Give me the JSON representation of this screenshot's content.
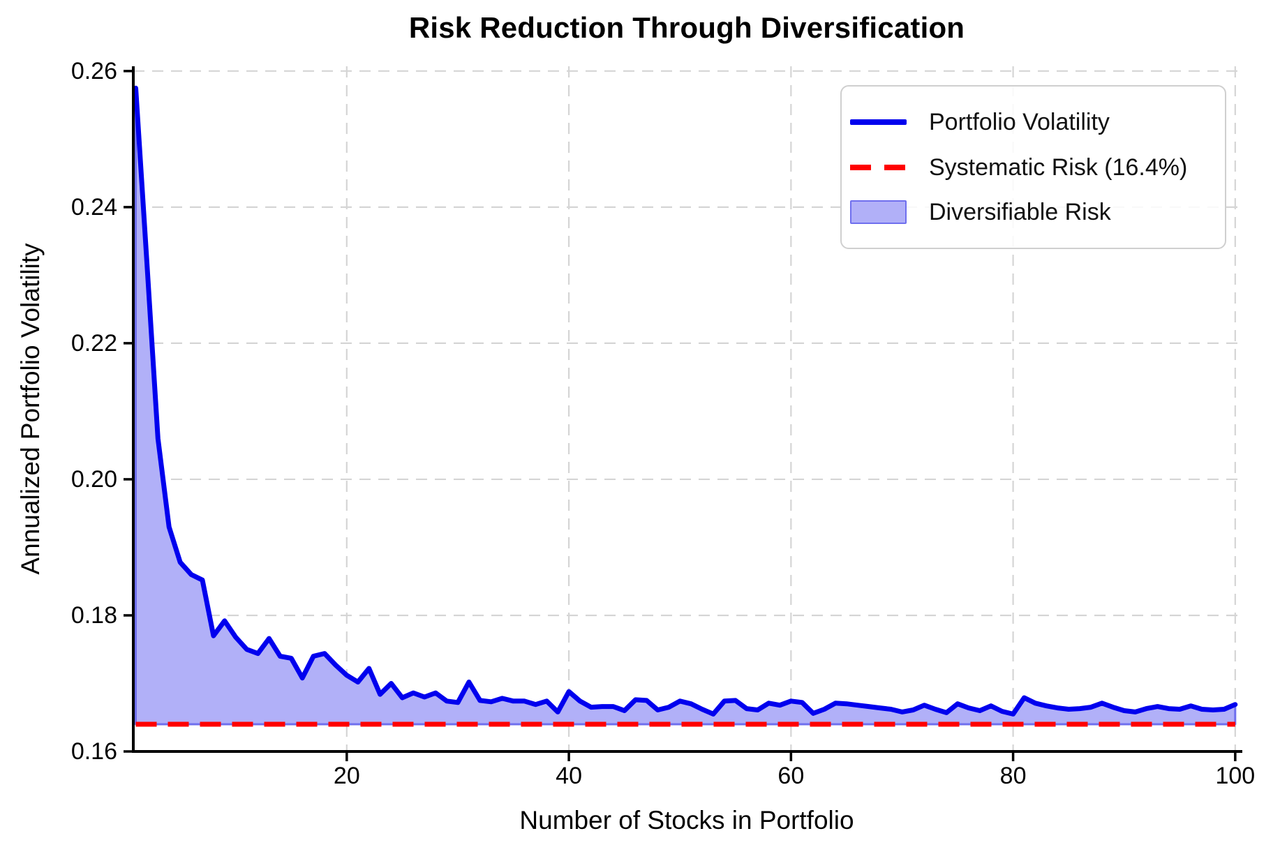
{
  "title": "Risk Reduction Through Diversification",
  "colors": {
    "line": "#0000ee",
    "systematic": "#ff0000",
    "area_fill": "#b1b0f8",
    "area_edge": "#6f6fee",
    "grid": "#d5d5d5",
    "spine": "#000000",
    "text": "#000000"
  },
  "legend": {
    "items": [
      {
        "label": "Portfolio Volatility",
        "handle": "solid-blue-line"
      },
      {
        "label": "Systematic Risk (16.4%)",
        "handle": "dashed-red-line"
      },
      {
        "label": "Diversifiable Risk",
        "handle": "lavender-patch"
      }
    ]
  },
  "chart_data": {
    "type": "area",
    "title": "Risk Reduction Through Diversification",
    "xlabel": "Number of Stocks in Portfolio",
    "ylabel": "Annualized Portfolio Volatility",
    "xlim": [
      0.78,
      100.45
    ],
    "ylim": [
      0.16,
      0.2607
    ],
    "x_ticks": [
      20,
      40,
      60,
      80,
      100
    ],
    "x_tick_labels": [
      "20",
      "40",
      "60",
      "80",
      "100"
    ],
    "y_ticks": [
      0.16,
      0.18,
      0.2,
      0.22,
      0.24,
      0.26
    ],
    "y_tick_labels": [
      "0.16",
      "0.18",
      "0.20",
      "0.22",
      "0.24",
      "0.26"
    ],
    "grid": true,
    "grid_style": "dashed",
    "legend_position": "upper right",
    "systematic_risk": 0.164,
    "series": [
      {
        "name": "Portfolio Volatility",
        "type": "line",
        "x": [
          1,
          2,
          3,
          4,
          5,
          6,
          7,
          8,
          9,
          10,
          11,
          12,
          13,
          14,
          15,
          16,
          17,
          18,
          19,
          20,
          21,
          22,
          23,
          24,
          25,
          26,
          27,
          28,
          29,
          30,
          31,
          32,
          33,
          34,
          35,
          36,
          37,
          38,
          39,
          40,
          41,
          42,
          43,
          44,
          45,
          46,
          47,
          48,
          49,
          50,
          51,
          52,
          53,
          54,
          55,
          56,
          57,
          58,
          59,
          60,
          61,
          62,
          63,
          64,
          65,
          66,
          67,
          68,
          69,
          70,
          71,
          72,
          73,
          74,
          75,
          76,
          77,
          78,
          79,
          80,
          81,
          82,
          83,
          84,
          85,
          86,
          87,
          88,
          89,
          90,
          91,
          92,
          93,
          94,
          95,
          96,
          97,
          98,
          99,
          100
        ],
        "values": [
          0.2575,
          0.232,
          0.206,
          0.193,
          0.1878,
          0.186,
          0.1852,
          0.177,
          0.1792,
          0.1768,
          0.175,
          0.1744,
          0.1766,
          0.174,
          0.1737,
          0.1708,
          0.174,
          0.1744,
          0.1727,
          0.1712,
          0.1702,
          0.1722,
          0.1684,
          0.17,
          0.1679,
          0.1686,
          0.168,
          0.1686,
          0.1674,
          0.1672,
          0.1702,
          0.1675,
          0.1673,
          0.1678,
          0.1674,
          0.1674,
          0.1669,
          0.1674,
          0.1658,
          0.1688,
          0.1674,
          0.1665,
          0.1666,
          0.1666,
          0.166,
          0.1676,
          0.1675,
          0.1661,
          0.1665,
          0.1674,
          0.167,
          0.1662,
          0.1655,
          0.1674,
          0.1675,
          0.1663,
          0.1661,
          0.1671,
          0.1668,
          0.1674,
          0.1672,
          0.1656,
          0.1662,
          0.1671,
          0.167,
          0.1668,
          0.1666,
          0.1664,
          0.1662,
          0.1658,
          0.1661,
          0.1668,
          0.1662,
          0.1657,
          0.167,
          0.1664,
          0.166,
          0.1667,
          0.1659,
          0.1655,
          0.1679,
          0.1671,
          0.1667,
          0.1664,
          0.1662,
          0.1663,
          0.1665,
          0.1671,
          0.1665,
          0.166,
          0.1658,
          0.1663,
          0.1666,
          0.1663,
          0.1662,
          0.1667,
          0.1662,
          0.1661,
          0.1662,
          0.1669
        ]
      },
      {
        "name": "Systematic Risk (16.4%)",
        "type": "hline-dashed",
        "value": 0.164
      },
      {
        "name": "Diversifiable Risk",
        "type": "fill-between",
        "lower": 0.164
      }
    ]
  }
}
